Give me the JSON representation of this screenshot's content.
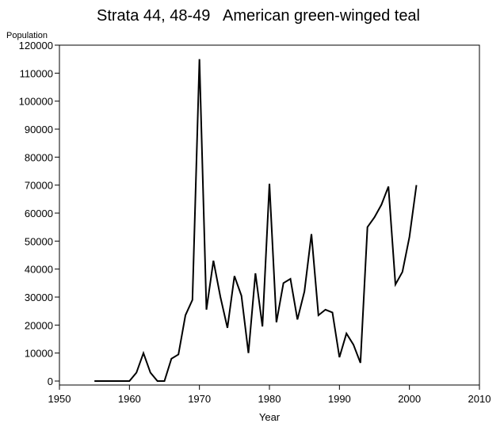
{
  "chart_data": {
    "type": "line",
    "title": "Strata 44, 48-49   American green-winged teal",
    "xlabel": "Year",
    "ylabel": "Population",
    "xlim": [
      1950,
      2010
    ],
    "ylim": [
      0,
      120000
    ],
    "x_ticks": [
      1950,
      1960,
      1970,
      1980,
      1990,
      2000,
      2010
    ],
    "y_ticks": [
      0,
      10000,
      20000,
      30000,
      40000,
      50000,
      60000,
      70000,
      80000,
      90000,
      100000,
      110000,
      120000
    ],
    "grid": false,
    "series": [
      {
        "x": [
          1955,
          1956,
          1957,
          1958,
          1959,
          1960,
          1961,
          1962,
          1963,
          1964,
          1965,
          1966,
          1967,
          1968,
          1969,
          1970,
          1971,
          1972,
          1973,
          1974,
          1975,
          1976,
          1977,
          1978,
          1979,
          1980,
          1981,
          1982,
          1983,
          1984,
          1985,
          1986,
          1987,
          1988,
          1989,
          1990,
          1991,
          1992,
          1993,
          1994,
          1995,
          1996,
          1997,
          1998,
          1999,
          2000,
          2001
        ],
        "y": [
          0,
          0,
          0,
          0,
          0,
          0,
          3000,
          10000,
          3000,
          0,
          0,
          8000,
          9500,
          23500,
          29000,
          115000,
          25500,
          43000,
          30000,
          19000,
          37500,
          30500,
          10000,
          38500,
          19500,
          70500,
          21000,
          35000,
          36500,
          22000,
          32000,
          52500,
          23500,
          25500,
          24500,
          8500,
          17000,
          13000,
          6500,
          55000,
          58500,
          63000,
          69500,
          34500,
          39000,
          51500,
          70000
        ],
        "color": "#000000"
      }
    ]
  }
}
